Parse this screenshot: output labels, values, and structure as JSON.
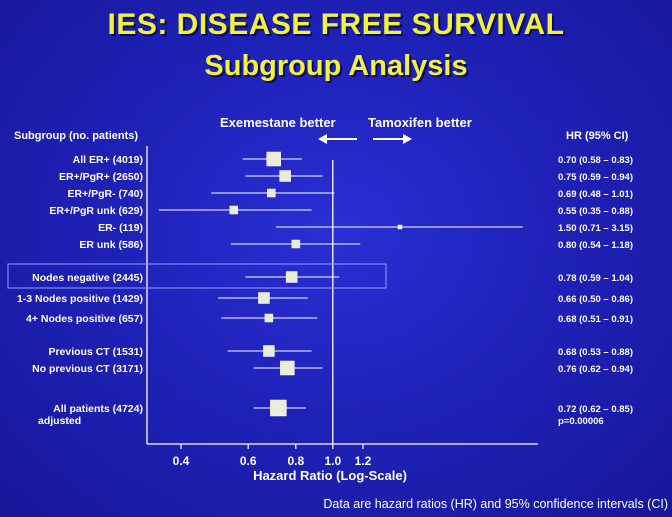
{
  "title_line1": "IES: DISEASE FREE SURVIVAL",
  "title_line2": "Subgroup Analysis",
  "direction_left": "Exemestane better",
  "direction_right": "Tamoxifen better",
  "column_subgroup": "Subgroup (no. patients)",
  "column_hr": "HR  (95% CI)",
  "footnote": "Data are hazard ratios (HR) and 95% confidence intervals (CI)",
  "colors": {
    "background": "#1f22b8",
    "title": "#f2f23a",
    "text": "#ffffff",
    "marker": "#e8ecd8"
  },
  "chart_data": {
    "type": "forest",
    "xlabel": "Hazard Ratio (Log-Scale)",
    "xscale": "log",
    "xlim": [
      0.33,
      1.5
    ],
    "xticks": [
      0.4,
      0.6,
      0.8,
      1.0,
      1.2
    ],
    "xtick_labels": [
      "0.4",
      "0.6",
      "0.8",
      "1.0",
      "1.2"
    ],
    "reference_line": 1.0,
    "rows": [
      {
        "label": "All ER+ (4019)",
        "hr": 0.7,
        "lo": 0.58,
        "hi": 0.83,
        "text": "0.70 (0.58 – 0.83)",
        "size": "large"
      },
      {
        "label": "ER+/PgR+ (2650)",
        "hr": 0.75,
        "lo": 0.59,
        "hi": 0.94,
        "text": "0.75 (0.59 – 0.94)",
        "size": "medium"
      },
      {
        "label": "ER+/PgR- (740)",
        "hr": 0.69,
        "lo": 0.48,
        "hi": 1.01,
        "text": "0.69 (0.48 – 1.01)",
        "size": "small"
      },
      {
        "label": "ER+/PgR unk (629)",
        "hr": 0.55,
        "lo": 0.35,
        "hi": 0.88,
        "text": "0.55 (0.35 – 0.88)",
        "size": "small"
      },
      {
        "label": "ER- (119)",
        "hr": 1.5,
        "lo": 0.71,
        "hi": 3.15,
        "text": "1.50 (0.71 – 3.15)",
        "size": "tiny"
      },
      {
        "label": "ER unk (586)",
        "hr": 0.8,
        "lo": 0.54,
        "hi": 1.18,
        "text": "0.80 (0.54 – 1.18)",
        "size": "small"
      },
      {
        "label": "Nodes negative (2445)",
        "hr": 0.78,
        "lo": 0.59,
        "hi": 1.04,
        "text": "0.78 (0.59 – 1.04)",
        "size": "medium",
        "highlighted": true
      },
      {
        "label": "1-3 Nodes positive (1429)",
        "hr": 0.66,
        "lo": 0.5,
        "hi": 0.86,
        "text": "0.66 (0.50 – 0.86)",
        "size": "medium"
      },
      {
        "label": "4+ Nodes positive (657)",
        "hr": 0.68,
        "lo": 0.51,
        "hi": 0.91,
        "text": "0.68 (0.51 – 0.91)",
        "size": "small"
      },
      {
        "label": "Previous CT (1531)",
        "hr": 0.68,
        "lo": 0.53,
        "hi": 0.88,
        "text": "0.68 (0.53 – 0.88)",
        "size": "medium"
      },
      {
        "label": "No previous CT (3171)",
        "hr": 0.76,
        "lo": 0.62,
        "hi": 0.94,
        "text": "0.76 (0.62 – 0.94)",
        "size": "large"
      },
      {
        "label": "All patients (4724)",
        "label2": "adjusted",
        "hr": 0.72,
        "lo": 0.62,
        "hi": 0.85,
        "text": "0.72 (0.62 – 0.85)",
        "text2": "p=0.00006",
        "size": "xlarge"
      }
    ]
  }
}
